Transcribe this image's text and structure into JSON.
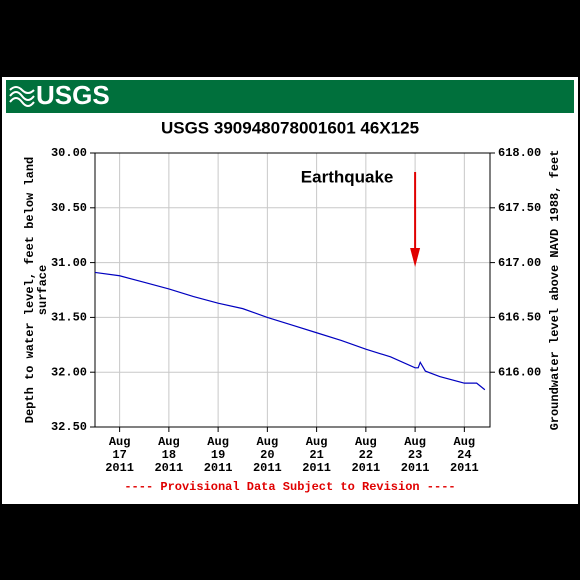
{
  "chart_data": {
    "type": "line",
    "logo": "USGS",
    "title": "USGS 390948078001601 46X125",
    "ylabel": [
      "Depth to water level, feet below land",
      "surface"
    ],
    "y2label": "Groundwater level above NAVD 1988, feet",
    "footer": "---- Provisional Data Subject to Revision ----",
    "annotation": {
      "text": "Earthquake",
      "x": "2011-08-23T00:00"
    },
    "xlim": [
      "2011-08-16T12:00",
      "2011-08-24T12:30"
    ],
    "xticks": [
      {
        "value": "2011-08-17T00:00",
        "label": "Aug 17 2011"
      },
      {
        "value": "2011-08-18T00:00",
        "label": "Aug 18 2011"
      },
      {
        "value": "2011-08-19T00:00",
        "label": "Aug 19 2011"
      },
      {
        "value": "2011-08-20T00:00",
        "label": "Aug 20 2011"
      },
      {
        "value": "2011-08-21T00:00",
        "label": "Aug 21 2011"
      },
      {
        "value": "2011-08-22T00:00",
        "label": "Aug 22 2011"
      },
      {
        "value": "2011-08-23T00:00",
        "label": "Aug 23 2011"
      },
      {
        "value": "2011-08-24T00:00",
        "label": "Aug 24 2011"
      }
    ],
    "ylim": [
      30,
      32.5
    ],
    "yticks": [
      {
        "value": 30,
        "label": "30.00"
      },
      {
        "value": 30.5,
        "label": "30.50"
      },
      {
        "value": 31,
        "label": "31.00"
      },
      {
        "value": 31.5,
        "label": "31.50"
      },
      {
        "value": 32,
        "label": "32.00"
      },
      {
        "value": 32.5,
        "label": "32.50"
      }
    ],
    "y2lim": [
      618,
      615.5
    ],
    "y2ticks": [
      {
        "value": 618,
        "label": "618.00"
      },
      {
        "value": 617.5,
        "label": "617.50"
      },
      {
        "value": 617,
        "label": "617.00"
      },
      {
        "value": 616.5,
        "label": "616.50"
      },
      {
        "value": 616,
        "label": "616.00"
      }
    ],
    "grid": true,
    "series": [
      {
        "name": "Depth to water level",
        "color": "#0000c0",
        "x": [
          "2011-08-16T12:00",
          "2011-08-17T00:00",
          "2011-08-17T12:00",
          "2011-08-18T00:00",
          "2011-08-18T12:00",
          "2011-08-19T00:00",
          "2011-08-19T12:00",
          "2011-08-20T00:00",
          "2011-08-20T12:00",
          "2011-08-21T00:00",
          "2011-08-21T12:00",
          "2011-08-22T00:00",
          "2011-08-22T12:00",
          "2011-08-23T00:00",
          "2011-08-23T01:30",
          "2011-08-23T02:30",
          "2011-08-23T05:00",
          "2011-08-23T12:00",
          "2011-08-24T00:00",
          "2011-08-24T06:00",
          "2011-08-24T10:00"
        ],
        "values": [
          31.09,
          31.12,
          31.18,
          31.24,
          31.31,
          31.37,
          31.42,
          31.5,
          31.57,
          31.64,
          31.71,
          31.79,
          31.86,
          31.96,
          31.96,
          31.91,
          31.99,
          32.04,
          32.1,
          32.1,
          32.16
        ]
      }
    ]
  }
}
